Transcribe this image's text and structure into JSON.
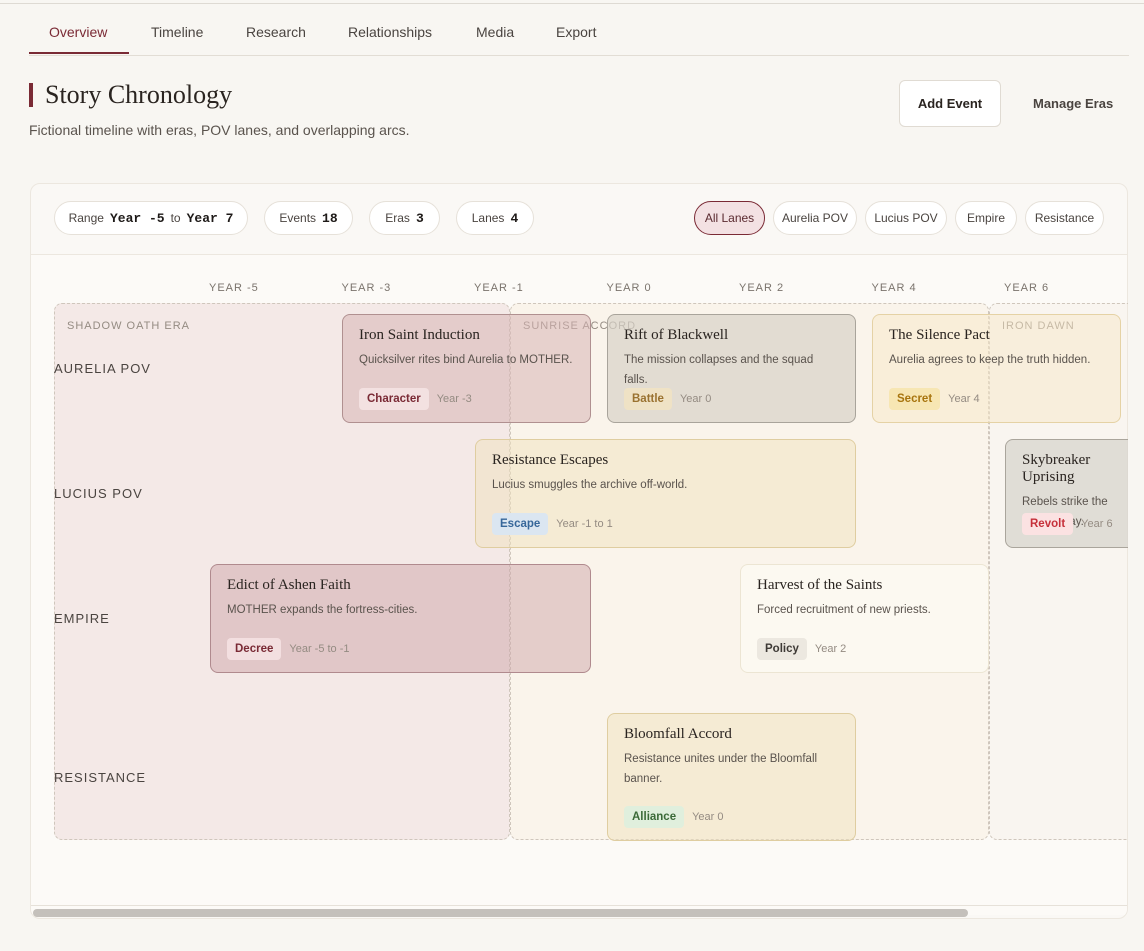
{
  "tabs": [
    "Overview",
    "Timeline",
    "Research",
    "Relationships",
    "Media",
    "Export"
  ],
  "header": {
    "title": "Story Chronology",
    "subtitle": "Fictional timeline with eras, POV lanes, and overlapping arcs.",
    "buttons": [
      "Add Event",
      "Manage Eras"
    ]
  },
  "stats": {
    "range": {
      "label": "Range",
      "from": "Year -5",
      "sep": "to",
      "to": "Year 7"
    },
    "items": [
      {
        "label": "Events",
        "value": 18
      },
      {
        "label": "Eras",
        "value": 3
      },
      {
        "label": "Lanes",
        "value": 4
      }
    ]
  },
  "filters": [
    "All Lanes",
    "Aurelia POV",
    "Lucius POV",
    "Empire",
    "Resistance"
  ],
  "axis": [
    "YEAR -5",
    "YEAR -3",
    "YEAR -1",
    "YEAR 0",
    "YEAR 2",
    "YEAR 4",
    "YEAR 6"
  ],
  "eras": [
    "SHADOW OATH ERA",
    "SUNRISE ACCORD",
    "IRON DAWN"
  ],
  "lanes": [
    "AURELIA POV",
    "LUCIUS POV",
    "EMPIRE",
    "RESISTANCE"
  ],
  "events": [
    {
      "title": "Iron Saint Induction",
      "desc": "Quicksilver rites bind Aurelia to MOTHER.",
      "tag": "Character",
      "when": "Year -3"
    },
    {
      "title": "Rift of Blackwell",
      "desc": "The mission collapses and the squad falls.",
      "tag": "Battle",
      "when": "Year 0"
    },
    {
      "title": "The Silence Pact",
      "desc": "Aurelia agrees to keep the truth hidden.",
      "tag": "Secret",
      "when": "Year 4"
    },
    {
      "title": "Resistance Escapes",
      "desc": "Lucius smuggles the archive off-world.",
      "tag": "Escape",
      "when": "Year -1 to 1"
    },
    {
      "title": "Skybreaker Uprising",
      "desc": "Rebels strike the orbital relay.",
      "tag": "Revolt",
      "when": "Year 6"
    },
    {
      "title": "Edict of Ashen Faith",
      "desc": "MOTHER expands the fortress-cities.",
      "tag": "Decree",
      "when": "Year -5 to -1"
    },
    {
      "title": "Harvest of the Saints",
      "desc": "Forced recruitment of new priests.",
      "tag": "Policy",
      "when": "Year 2"
    },
    {
      "title": "Bloomfall Accord",
      "desc": "Resistance unites under the Bloomfall banner.",
      "tag": "Alliance",
      "when": "Year 0"
    }
  ]
}
